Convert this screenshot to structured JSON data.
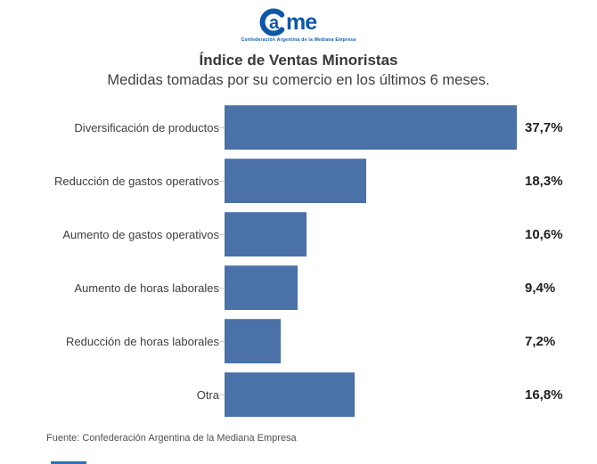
{
  "logo": {
    "name": "CAME",
    "wordmark_a": "a",
    "wordmark_me": "me",
    "tagline": "Confederación Argentina de la Mediana Empresa",
    "color": "#0d57a9"
  },
  "header": {
    "title": "Índice de Ventas Minoristas",
    "subtitle": "Medidas tomadas por su comercio en los últimos 6 meses."
  },
  "chart_data": {
    "type": "bar",
    "orientation": "horizontal",
    "title": "Índice de Ventas Minoristas",
    "subtitle": "Medidas tomadas por su comercio en los últimos 6 meses.",
    "categories": [
      "Diversificación de productos",
      "Reducción de gastos operativos",
      "Aumento de gastos operativos",
      "Aumento de horas laborales",
      "Reducción de horas laborales",
      "Otra"
    ],
    "values": [
      37.7,
      18.3,
      10.6,
      9.4,
      7.2,
      16.8
    ],
    "value_labels": [
      "37,7%",
      "18,3%",
      "10,6%",
      "9,4%",
      "7,2%",
      "16,8%"
    ],
    "xlabel": "",
    "ylabel": "",
    "xlim": [
      0,
      37.7
    ],
    "grid": false,
    "legend": false,
    "bar_color": "#4a71a8",
    "value_label_color": "#1f1f1f"
  },
  "footer": {
    "source": "Fuente: Confederación Argentina de la Mediana Empresa"
  }
}
